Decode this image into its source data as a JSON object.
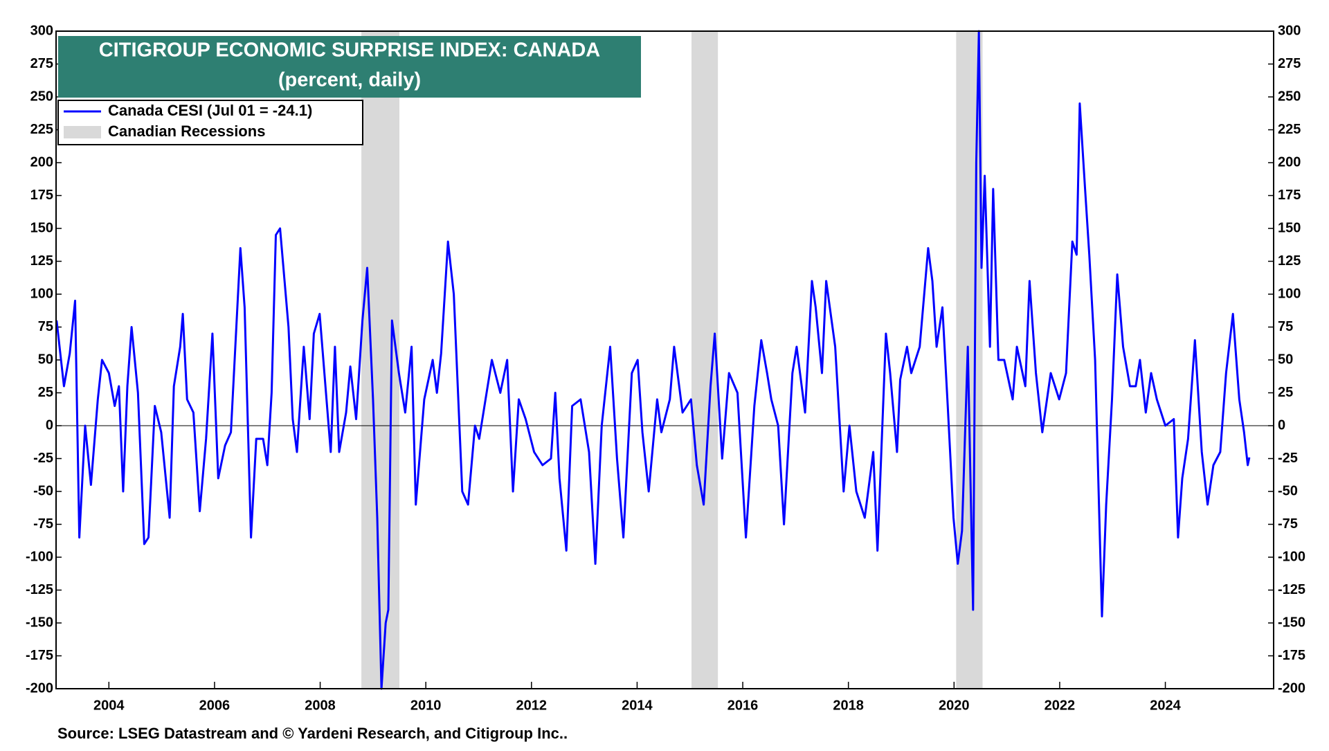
{
  "chart_data": {
    "type": "line",
    "title": "CITIGROUP ECONOMIC SURPRISE INDEX:  CANADA",
    "subtitle": "(percent, daily)",
    "source": "Source: LSEG Datastream and © Yardeni Research, and Citigroup Inc..",
    "xlim": [
      2003.0,
      2026.05
    ],
    "xticks": [
      2004,
      2006,
      2008,
      2010,
      2012,
      2014,
      2016,
      2018,
      2020,
      2022,
      2024
    ],
    "ylim": [
      -200,
      300
    ],
    "yticks": [
      -200,
      -175,
      -150,
      -125,
      -100,
      -75,
      -50,
      -25,
      0,
      25,
      50,
      75,
      100,
      125,
      150,
      175,
      200,
      225,
      250,
      275,
      300
    ],
    "recessions": {
      "name": "Canadian Recessions",
      "color": "#d9d9d9",
      "ranges": [
        [
          2008.78,
          2009.5
        ],
        [
          2015.03,
          2015.53
        ],
        [
          2020.04,
          2020.54
        ]
      ]
    },
    "x": [
      2003.01,
      2003.15,
      2003.26,
      2003.36,
      2003.44,
      2003.55,
      2003.66,
      2003.79,
      2003.87,
      2004.0,
      2004.11,
      2004.19,
      2004.27,
      2004.35,
      2004.43,
      2004.55,
      2004.67,
      2004.75,
      2004.87,
      2004.99,
      2005.15,
      2005.23,
      2005.35,
      2005.4,
      2005.48,
      2005.6,
      2005.72,
      2005.84,
      2005.96,
      2006.07,
      2006.2,
      2006.31,
      2006.49,
      2006.57,
      2006.69,
      2006.79,
      2006.92,
      2007.0,
      2007.08,
      2007.16,
      2007.24,
      2007.4,
      2007.48,
      2007.56,
      2007.69,
      2007.8,
      2007.88,
      2007.99,
      2008.12,
      2008.2,
      2008.28,
      2008.36,
      2008.49,
      2008.57,
      2008.68,
      2008.8,
      2008.89,
      2009.0,
      2009.08,
      2009.16,
      2009.24,
      2009.29,
      2009.36,
      2009.49,
      2009.61,
      2009.73,
      2009.81,
      2009.97,
      2010.13,
      2010.21,
      2010.29,
      2010.42,
      2010.53,
      2010.69,
      2010.8,
      2010.93,
      2011.01,
      2011.17,
      2011.25,
      2011.41,
      2011.54,
      2011.65,
      2011.76,
      2011.89,
      2012.05,
      2012.21,
      2012.37,
      2012.45,
      2012.53,
      2012.66,
      2012.77,
      2012.93,
      2013.09,
      2013.21,
      2013.33,
      2013.49,
      2013.62,
      2013.74,
      2013.9,
      2014.01,
      2014.1,
      2014.22,
      2014.38,
      2014.46,
      2014.62,
      2014.7,
      2014.86,
      2015.02,
      2015.13,
      2015.26,
      2015.39,
      2015.47,
      2015.61,
      2015.74,
      2015.9,
      2016.06,
      2016.22,
      2016.35,
      2016.46,
      2016.54,
      2016.67,
      2016.78,
      2016.94,
      2017.02,
      2017.18,
      2017.31,
      2017.38,
      2017.5,
      2017.58,
      2017.75,
      2017.91,
      2018.02,
      2018.15,
      2018.31,
      2018.47,
      2018.55,
      2018.71,
      2018.79,
      2018.92,
      2018.98,
      2019.11,
      2019.19,
      2019.35,
      2019.51,
      2019.59,
      2019.67,
      2019.78,
      2019.88,
      2019.99,
      2020.07,
      2020.15,
      2020.26,
      2020.36,
      2020.42,
      2020.47,
      2020.52,
      2020.58,
      2020.68,
      2020.74,
      2020.84,
      2020.95,
      2021.11,
      2021.19,
      2021.35,
      2021.43,
      2021.55,
      2021.67,
      2021.83,
      2021.99,
      2022.12,
      2022.24,
      2022.32,
      2022.38,
      2022.48,
      2022.56,
      2022.67,
      2022.8,
      2022.88,
      2022.99,
      2023.09,
      2023.2,
      2023.33,
      2023.44,
      2023.52,
      2023.63,
      2023.73,
      2023.84,
      2024.0,
      2024.16,
      2024.24,
      2024.32,
      2024.43,
      2024.56,
      2024.69,
      2024.8,
      2024.91,
      2025.04,
      2025.15,
      2025.28,
      2025.4,
      2025.49,
      2025.56,
      2025.59
    ],
    "series": [
      {
        "name": "Canada CESI (Jul 01 = -24.1)",
        "color": "#0000ff",
        "values": [
          80,
          30,
          55,
          95,
          -85,
          0,
          -45,
          20,
          50,
          40,
          15,
          30,
          -50,
          30,
          75,
          25,
          -90,
          -85,
          15,
          -5,
          -70,
          30,
          60,
          85,
          20,
          10,
          -65,
          -10,
          70,
          -40,
          -15,
          -5,
          135,
          90,
          -85,
          -10,
          -10,
          -30,
          25,
          145,
          150,
          75,
          5,
          -20,
          60,
          5,
          70,
          85,
          20,
          -20,
          60,
          -20,
          10,
          45,
          5,
          80,
          120,
          20,
          -70,
          -200,
          -150,
          -140,
          80,
          40,
          10,
          60,
          -60,
          20,
          50,
          25,
          55,
          140,
          100,
          -50,
          -60,
          0,
          -10,
          30,
          50,
          25,
          50,
          -50,
          20,
          5,
          -20,
          -30,
          -25,
          25,
          -40,
          -95,
          15,
          20,
          -20,
          -105,
          0,
          60,
          -25,
          -85,
          40,
          50,
          -5,
          -50,
          20,
          -5,
          20,
          60,
          10,
          20,
          -30,
          -60,
          30,
          70,
          -25,
          40,
          25,
          -85,
          15,
          65,
          40,
          20,
          0,
          -75,
          40,
          60,
          10,
          110,
          90,
          40,
          110,
          60,
          -50,
          0,
          -50,
          -70,
          -20,
          -95,
          70,
          40,
          -20,
          35,
          60,
          40,
          60,
          135,
          110,
          60,
          90,
          15,
          -70,
          -105,
          -80,
          60,
          -140,
          200,
          300,
          120,
          190,
          60,
          180,
          50,
          50,
          20,
          60,
          30,
          110,
          40,
          -5,
          40,
          20,
          40,
          140,
          130,
          245,
          180,
          130,
          50,
          -145,
          -60,
          20,
          115,
          60,
          30,
          30,
          50,
          10,
          40,
          20,
          0,
          5,
          -85,
          -40,
          -10,
          65,
          -20,
          -60,
          -30,
          -20,
          40,
          85,
          20,
          -5,
          -30,
          -24.1
        ]
      }
    ]
  }
}
